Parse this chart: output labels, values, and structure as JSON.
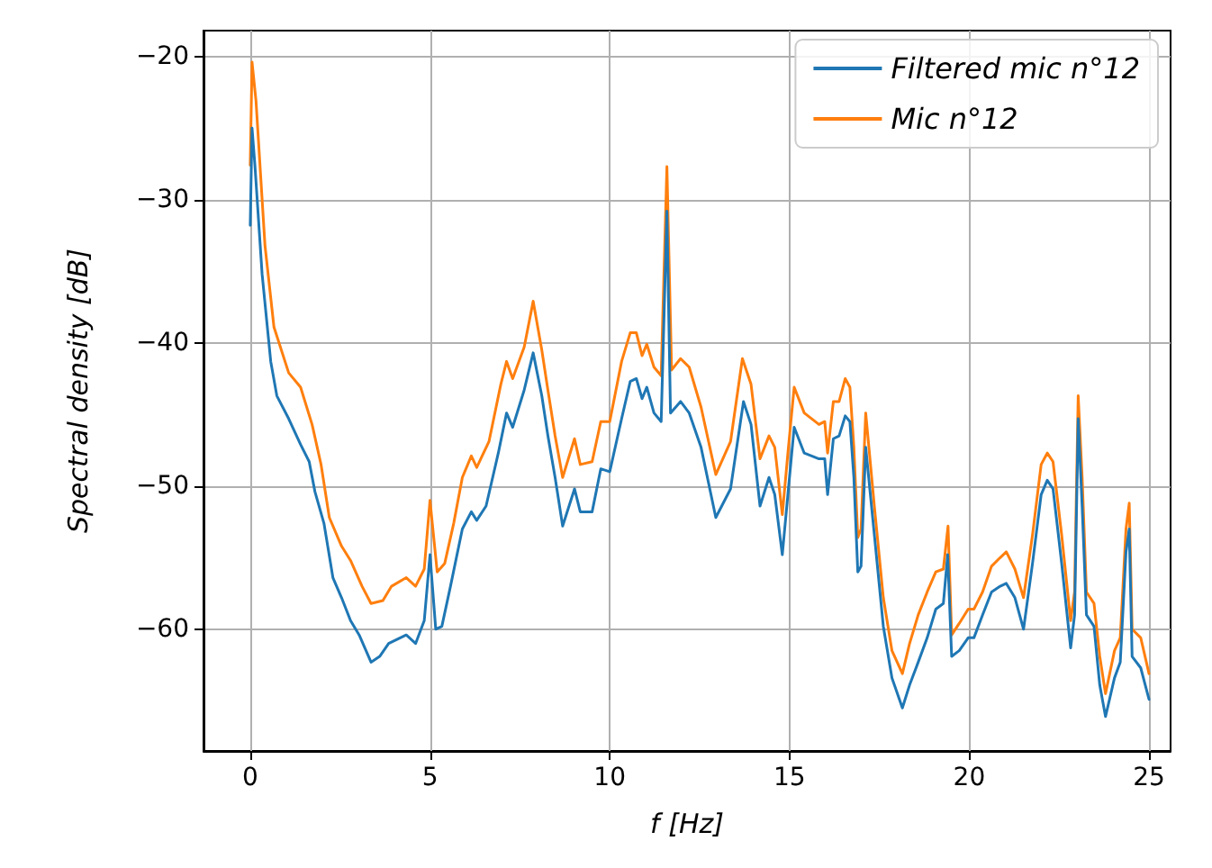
{
  "chart_data": {
    "type": "line",
    "xlabel": "f [Hz]",
    "ylabel": "Spectral density [dB]",
    "xlim": [
      -1.3,
      25.6
    ],
    "ylim": [
      -68.5,
      -18.2
    ],
    "xticks": [
      0,
      5,
      10,
      15,
      20,
      25
    ],
    "yticks": [
      -60,
      -50,
      -40,
      -30,
      -20
    ],
    "grid": true,
    "legend": "top right",
    "marker": "none",
    "line_style": "solid",
    "series": [
      {
        "name": "Filtered mic n°12",
        "color": "#1f77b4",
        "x": [
          0,
          0.05,
          0.13,
          0.33,
          0.57,
          0.74,
          1.07,
          1.4,
          1.64,
          1.8,
          2.05,
          2.3,
          2.54,
          2.79,
          3.03,
          3.36,
          3.6,
          3.85,
          4.34,
          4.6,
          4.84,
          5.0,
          5.16,
          5.33,
          5.57,
          5.9,
          6.15,
          6.3,
          6.56,
          6.9,
          7.13,
          7.3,
          7.62,
          7.87,
          8.11,
          8.28,
          8.48,
          8.69,
          9.02,
          9.18,
          9.51,
          9.75,
          10.0,
          10.33,
          10.57,
          10.74,
          10.9,
          11.03,
          11.23,
          11.43,
          11.59,
          11.69,
          11.97,
          12.21,
          12.54,
          12.95,
          13.36,
          13.72,
          13.93,
          14.18,
          14.43,
          14.59,
          14.8,
          14.97,
          15.13,
          15.41,
          15.82,
          15.98,
          16.06,
          16.22,
          16.38,
          16.55,
          16.68,
          16.79,
          16.9,
          16.99,
          17.12,
          17.36,
          17.61,
          17.85,
          18.14,
          18.34,
          18.58,
          18.83,
          19.07,
          19.28,
          19.4,
          19.51,
          19.72,
          19.97,
          20.13,
          20.37,
          20.62,
          20.86,
          21.03,
          21.27,
          21.51,
          21.76,
          22.0,
          22.17,
          22.33,
          22.57,
          22.82,
          22.93,
          23.03,
          23.14,
          23.26,
          23.47,
          23.63,
          23.79,
          24.04,
          24.2,
          24.36,
          24.45,
          24.53,
          24.77,
          25.0
        ],
        "values": [
          -31.8,
          -25.0,
          -27.6,
          -35.2,
          -41.3,
          -43.7,
          -45.3,
          -47.1,
          -48.3,
          -50.4,
          -52.6,
          -56.4,
          -57.8,
          -59.4,
          -60.4,
          -62.3,
          -61.9,
          -61.0,
          -60.4,
          -61.0,
          -59.4,
          -54.8,
          -60.0,
          -59.8,
          -57.0,
          -53.0,
          -51.8,
          -52.4,
          -51.4,
          -47.7,
          -44.9,
          -45.9,
          -43.3,
          -40.7,
          -43.7,
          -46.5,
          -49.4,
          -52.8,
          -50.2,
          -51.8,
          -51.8,
          -48.8,
          -49.0,
          -45.3,
          -42.7,
          -42.5,
          -43.9,
          -43.1,
          -44.9,
          -45.5,
          -30.8,
          -44.9,
          -44.1,
          -44.9,
          -47.3,
          -52.2,
          -50.2,
          -44.1,
          -45.7,
          -51.4,
          -49.4,
          -50.6,
          -54.8,
          -50.2,
          -45.9,
          -47.7,
          -48.1,
          -48.1,
          -50.6,
          -46.7,
          -46.5,
          -45.1,
          -45.5,
          -49.4,
          -56.0,
          -55.6,
          -47.3,
          -53.4,
          -59.8,
          -63.4,
          -65.5,
          -63.9,
          -62.3,
          -60.6,
          -58.6,
          -58.2,
          -54.8,
          -61.9,
          -61.5,
          -60.6,
          -60.6,
          -59.0,
          -57.4,
          -57.0,
          -56.8,
          -57.8,
          -60.0,
          -55.4,
          -50.6,
          -49.6,
          -50.2,
          -55.4,
          -61.3,
          -59.0,
          -45.3,
          -51.4,
          -59.0,
          -59.8,
          -63.9,
          -66.1,
          -63.4,
          -62.3,
          -54.6,
          -53.0,
          -61.9,
          -62.7,
          -64.9
        ]
      },
      {
        "name": "Mic n°12",
        "color": "#ff7f0e",
        "x": [
          0,
          0.05,
          0.16,
          0.41,
          0.66,
          1.07,
          1.4,
          1.72,
          1.97,
          2.2,
          2.54,
          2.79,
          3.11,
          3.36,
          3.69,
          3.93,
          4.34,
          4.6,
          4.84,
          5.0,
          5.2,
          5.41,
          5.66,
          5.9,
          6.15,
          6.3,
          6.64,
          6.97,
          7.13,
          7.3,
          7.62,
          7.87,
          8.11,
          8.28,
          8.48,
          8.69,
          9.02,
          9.18,
          9.51,
          9.75,
          10.0,
          10.33,
          10.57,
          10.74,
          10.9,
          11.03,
          11.23,
          11.43,
          11.59,
          11.72,
          11.97,
          12.21,
          12.54,
          12.95,
          13.36,
          13.69,
          13.93,
          14.18,
          14.43,
          14.59,
          14.8,
          14.97,
          15.13,
          15.41,
          15.82,
          15.98,
          16.06,
          16.22,
          16.38,
          16.55,
          16.68,
          16.79,
          16.9,
          16.99,
          17.12,
          17.36,
          17.61,
          17.85,
          18.14,
          18.34,
          18.58,
          18.83,
          19.07,
          19.28,
          19.41,
          19.51,
          19.72,
          19.97,
          20.13,
          20.37,
          20.62,
          20.86,
          21.03,
          21.27,
          21.51,
          21.76,
          22.0,
          22.17,
          22.33,
          22.57,
          22.82,
          22.93,
          23.03,
          23.14,
          23.26,
          23.47,
          23.63,
          23.79,
          24.04,
          24.2,
          24.36,
          24.45,
          24.53,
          24.77,
          25.0
        ],
        "values": [
          -27.6,
          -20.4,
          -23.1,
          -33.2,
          -38.9,
          -42.1,
          -43.1,
          -45.7,
          -48.5,
          -52.2,
          -54.2,
          -55.2,
          -57.0,
          -58.2,
          -58.0,
          -57.0,
          -56.4,
          -57.0,
          -55.8,
          -51.0,
          -56.0,
          -55.4,
          -52.6,
          -49.4,
          -47.9,
          -48.7,
          -46.9,
          -42.9,
          -41.3,
          -42.5,
          -40.3,
          -37.1,
          -40.5,
          -43.3,
          -46.5,
          -49.4,
          -46.7,
          -48.5,
          -48.3,
          -45.5,
          -45.5,
          -41.3,
          -39.3,
          -39.3,
          -40.9,
          -40.1,
          -41.7,
          -42.3,
          -27.7,
          -41.9,
          -41.1,
          -41.7,
          -44.5,
          -49.2,
          -46.9,
          -41.1,
          -42.9,
          -48.1,
          -46.5,
          -47.3,
          -52.0,
          -47.3,
          -43.1,
          -44.9,
          -45.7,
          -45.5,
          -47.7,
          -44.1,
          -44.1,
          -42.5,
          -43.1,
          -47.3,
          -53.6,
          -53.0,
          -44.9,
          -51.4,
          -57.8,
          -61.5,
          -63.1,
          -61.0,
          -59.0,
          -57.4,
          -56.0,
          -55.8,
          -52.8,
          -60.4,
          -59.6,
          -58.6,
          -58.6,
          -57.4,
          -55.6,
          -55.0,
          -54.6,
          -55.8,
          -57.8,
          -53.4,
          -48.5,
          -47.7,
          -48.3,
          -53.4,
          -59.4,
          -57.4,
          -43.7,
          -49.4,
          -57.4,
          -58.2,
          -61.9,
          -64.5,
          -61.5,
          -60.6,
          -53.0,
          -51.2,
          -60.0,
          -60.6,
          -63.1
        ]
      }
    ]
  }
}
